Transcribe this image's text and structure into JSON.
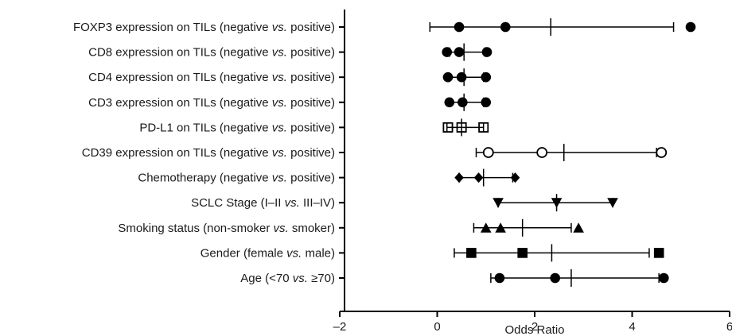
{
  "chart_data": {
    "type": "forest",
    "xlabel": "Odds Ratio",
    "xlim": [
      -2,
      6
    ],
    "x_ticks": [
      -2,
      0,
      2,
      4,
      6
    ],
    "x_tick_labels": [
      "–2",
      "0",
      "2",
      "4",
      "6"
    ],
    "grid": false,
    "rows": [
      {
        "parts": [
          {
            "t": "FOXP3 expression on TILs (negative "
          },
          {
            "t": "vs.",
            "i": true
          },
          {
            "t": " positive)"
          }
        ],
        "marker": "circle-filled",
        "ci": [
          -0.15,
          4.85
        ],
        "center": 2.33,
        "points": [
          0.45,
          1.4,
          5.2
        ]
      },
      {
        "parts": [
          {
            "t": "CD8 expression on TILs (negative "
          },
          {
            "t": "vs.",
            "i": true
          },
          {
            "t": " positive)"
          }
        ],
        "marker": "circle-filled",
        "ci": [
          0.25,
          0.98
        ],
        "center": 0.55,
        "points": [
          0.2,
          0.45,
          1.02
        ]
      },
      {
        "parts": [
          {
            "t": "CD4 expression on TILs (negative "
          },
          {
            "t": "vs.",
            "i": true
          },
          {
            "t": " positive)"
          }
        ],
        "marker": "circle-filled",
        "ci": [
          0.25,
          0.95
        ],
        "center": 0.55,
        "points": [
          0.22,
          0.5,
          1.0
        ]
      },
      {
        "parts": [
          {
            "t": "CD3 expression on TILs (negative "
          },
          {
            "t": "vs.",
            "i": true
          },
          {
            "t": " positive)"
          }
        ],
        "marker": "circle-filled",
        "ci": [
          0.25,
          0.95
        ],
        "center": 0.55,
        "points": [
          0.25,
          0.52,
          1.0
        ]
      },
      {
        "parts": [
          {
            "t": "PD-L1 on TILs (negative "
          },
          {
            "t": "vs.",
            "i": true
          },
          {
            "t": " positive)"
          }
        ],
        "marker": "square-open",
        "ci": [
          0.2,
          0.95
        ],
        "center": 0.5,
        "points": [
          0.22,
          0.5,
          0.95
        ]
      },
      {
        "parts": [
          {
            "t": "CD39 expression on TILs (negative "
          },
          {
            "t": "vs.",
            "i": true
          },
          {
            "t": " positive)"
          }
        ],
        "marker": "circle-open",
        "ci": [
          0.8,
          4.5
        ],
        "center": 2.6,
        "points": [
          1.05,
          2.15,
          4.6
        ]
      },
      {
        "parts": [
          {
            "t": "Chemotherapy (negative "
          },
          {
            "t": "vs.",
            "i": true
          },
          {
            "t": " positive)"
          }
        ],
        "marker": "diamond-filled",
        "ci": [
          0.45,
          1.55
        ],
        "center": 0.95,
        "points": [
          0.45,
          0.85,
          1.6
        ]
      },
      {
        "parts": [
          {
            "t": "SCLC Stage (I–II "
          },
          {
            "t": "vs.",
            "i": true
          },
          {
            "t": " III–IV)"
          }
        ],
        "marker": "triangle-down-filled",
        "ci": [
          1.25,
          3.6
        ],
        "center": 2.45,
        "points": [
          1.25,
          2.45,
          3.6
        ]
      },
      {
        "parts": [
          {
            "t": "Smoking status (non-smoker "
          },
          {
            "t": "vs.",
            "i": true
          },
          {
            "t": " smoker)"
          }
        ],
        "marker": "triangle-up-filled",
        "ci": [
          0.75,
          2.75
        ],
        "center": 1.75,
        "points": [
          1.0,
          1.3,
          2.9
        ]
      },
      {
        "parts": [
          {
            "t": "Gender (female "
          },
          {
            "t": "vs.",
            "i": true
          },
          {
            "t": " male)"
          }
        ],
        "marker": "square-filled",
        "ci": [
          0.35,
          4.35
        ],
        "center": 2.35,
        "points": [
          0.7,
          1.75,
          4.55
        ]
      },
      {
        "parts": [
          {
            "t": "Age (<70 "
          },
          {
            "t": "vs.",
            "i": true
          },
          {
            "t": " ≥70)"
          }
        ],
        "marker": "circle-filled",
        "ci": [
          1.1,
          4.55
        ],
        "center": 2.75,
        "points": [
          1.28,
          2.42,
          4.65
        ]
      }
    ]
  }
}
